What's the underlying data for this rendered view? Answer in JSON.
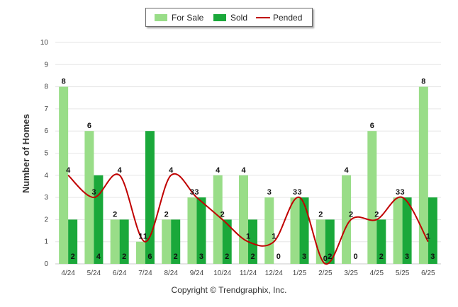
{
  "chart_data": {
    "type": "bar",
    "categories": [
      "4/24",
      "5/24",
      "6/24",
      "7/24",
      "8/24",
      "9/24",
      "10/24",
      "11/24",
      "12/24",
      "1/25",
      "2/25",
      "3/25",
      "4/25",
      "5/25",
      "6/25"
    ],
    "series": [
      {
        "name": "For Sale",
        "type": "bar",
        "color": "#99dd88",
        "values": [
          8,
          6,
          2,
          1,
          2,
          3,
          4,
          4,
          3,
          3,
          2,
          4,
          6,
          3,
          8
        ]
      },
      {
        "name": "Sold",
        "type": "bar",
        "color": "#1aa83a",
        "values": [
          2,
          4,
          2,
          6,
          2,
          3,
          2,
          2,
          0,
          3,
          2,
          0,
          2,
          3,
          3
        ]
      },
      {
        "name": "Pended",
        "type": "line",
        "color": "#c00000",
        "values": [
          4,
          3,
          4,
          1,
          4,
          3,
          2,
          1,
          1,
          3,
          0,
          2,
          2,
          3,
          1
        ]
      }
    ],
    "ylabel": "Number of Homes",
    "xlabel": "",
    "ylim": [
      0,
      10
    ],
    "yticks": [
      0,
      1,
      2,
      3,
      4,
      5,
      6,
      7,
      8,
      9,
      10
    ],
    "grid": true,
    "legend_position": "top-center"
  },
  "footer": {
    "copyright": "Copyright © Trendgraphix, Inc."
  }
}
